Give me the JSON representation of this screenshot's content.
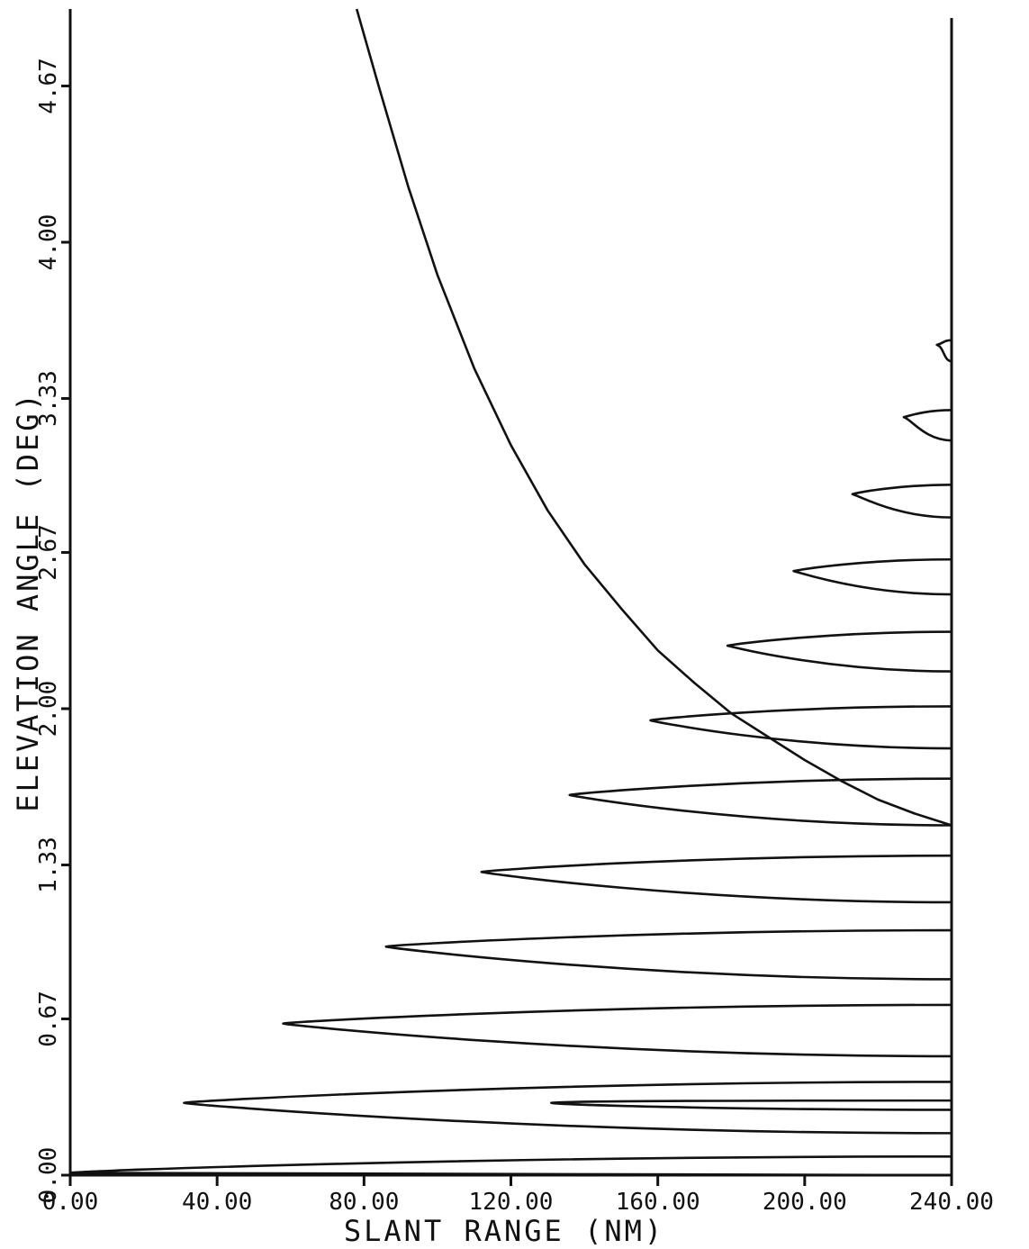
{
  "chart_data": {
    "type": "line",
    "xlabel": "SLANT RANGE (NM)",
    "ylabel": "ELEVATION ANGLE (DEG)",
    "xlim": [
      0,
      240
    ],
    "ylim": [
      0,
      5.0
    ],
    "x_ticks": [
      "0.00",
      "40.00",
      "80.00",
      "120.00",
      "160.00",
      "200.00",
      "240.00"
    ],
    "x_tick_values": [
      0,
      40,
      80,
      120,
      160,
      200,
      240
    ],
    "y_ticks": [
      "0.00",
      "0.67",
      "1.33",
      "2.00",
      "2.67",
      "3.33",
      "4.00",
      "4.67"
    ],
    "y_tick_values": [
      0.0,
      0.67,
      1.33,
      2.0,
      2.67,
      3.33,
      4.0,
      4.67
    ],
    "grid": false,
    "series": [
      {
        "kind": "curve",
        "points": [
          {
            "x": 78,
            "y": 5.0
          },
          {
            "x": 84,
            "y": 4.67
          },
          {
            "x": 92,
            "y": 4.24
          },
          {
            "x": 100,
            "y": 3.86
          },
          {
            "x": 110,
            "y": 3.46
          },
          {
            "x": 120,
            "y": 3.13
          },
          {
            "x": 130,
            "y": 2.85
          },
          {
            "x": 140,
            "y": 2.62
          },
          {
            "x": 150,
            "y": 2.43
          },
          {
            "x": 160,
            "y": 2.25
          },
          {
            "x": 170,
            "y": 2.11
          },
          {
            "x": 180,
            "y": 1.98
          },
          {
            "x": 190,
            "y": 1.88
          },
          {
            "x": 200,
            "y": 1.78
          },
          {
            "x": 210,
            "y": 1.69
          },
          {
            "x": 220,
            "y": 1.61
          },
          {
            "x": 230,
            "y": 1.55
          },
          {
            "x": 240,
            "y": 1.5
          }
        ]
      },
      {
        "kind": "lobes",
        "lobes": [
          {
            "y_low": 0.0,
            "y_tip": 0.01,
            "y_high": 0.08,
            "x_tip": 0
          },
          {
            "y_low": 0.18,
            "y_tip": 0.31,
            "y_high": 0.4,
            "x_tip": 31
          },
          {
            "y_low": 0.51,
            "y_tip": 0.65,
            "y_high": 0.73,
            "x_tip": 58
          },
          {
            "y_low": 0.84,
            "y_tip": 0.98,
            "y_high": 1.05,
            "x_tip": 86
          },
          {
            "y_low": 1.17,
            "y_tip": 1.3,
            "y_high": 1.37,
            "x_tip": 112
          },
          {
            "y_low": 1.5,
            "y_tip": 1.63,
            "y_high": 1.7,
            "x_tip": 136
          },
          {
            "y_low": 1.83,
            "y_tip": 1.95,
            "y_high": 2.01,
            "x_tip": 158
          },
          {
            "y_low": 2.16,
            "y_tip": 2.27,
            "y_high": 2.33,
            "x_tip": 179
          },
          {
            "y_low": 2.49,
            "y_tip": 2.59,
            "y_high": 2.64,
            "x_tip": 197
          },
          {
            "y_low": 2.82,
            "y_tip": 2.92,
            "y_high": 2.96,
            "x_tip": 213
          },
          {
            "y_low": 3.15,
            "y_tip": 3.25,
            "y_high": 3.28,
            "x_tip": 227
          },
          {
            "y_low": 3.49,
            "y_tip": 3.56,
            "y_high": 3.58,
            "x_tip": 236
          }
        ],
        "inner_lobe": {
          "y_low": 0.28,
          "y_tip": 0.31,
          "y_high": 0.32,
          "x_tip": 131
        }
      }
    ]
  }
}
